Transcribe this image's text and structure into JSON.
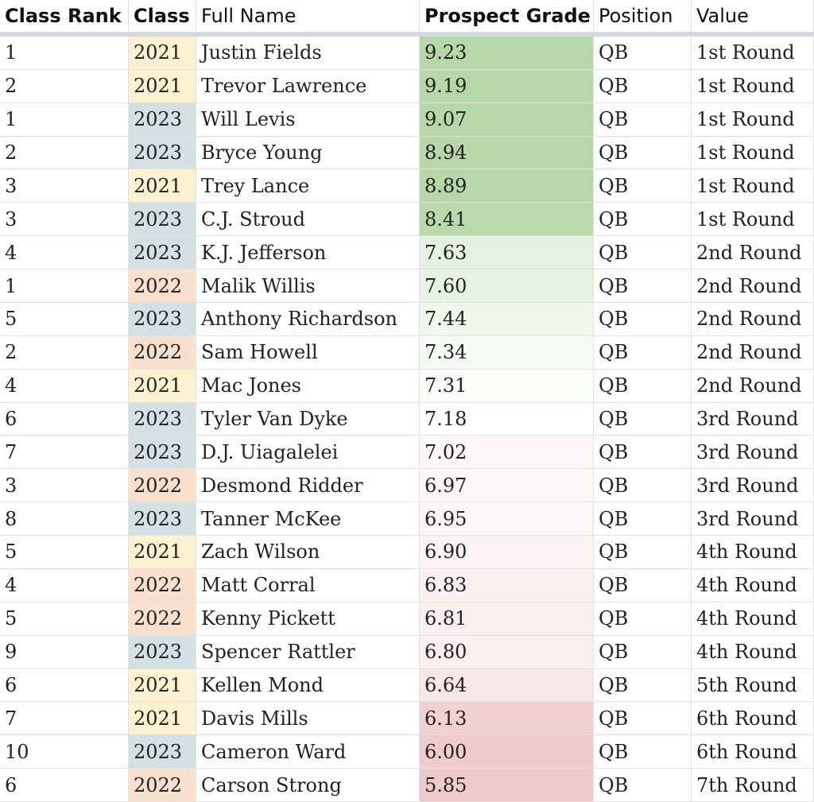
{
  "table": {
    "columns": [
      "Class Rank",
      "Class",
      "Full Name",
      "Prospect Grade",
      "Position",
      "Value"
    ],
    "class_colors": {
      "2021": "#fdf2cf",
      "2022": "#f8e0cd",
      "2023": "#d5e0e4"
    },
    "rows": [
      [
        1,
        2021,
        "Justin Fields",
        "9.23",
        "QB",
        "1st Round"
      ],
      [
        2,
        2021,
        "Trevor Lawrence",
        "9.19",
        "QB",
        "1st Round"
      ],
      [
        1,
        2023,
        "Will Levis",
        "9.07",
        "QB",
        "1st Round"
      ],
      [
        2,
        2023,
        "Bryce Young",
        "8.94",
        "QB",
        "1st Round"
      ],
      [
        3,
        2021,
        "Trey Lance",
        "8.89",
        "QB",
        "1st Round"
      ],
      [
        3,
        2023,
        "C.J. Stroud",
        "8.41",
        "QB",
        "1st Round"
      ],
      [
        4,
        2023,
        "K.J. Jefferson",
        "7.63",
        "QB",
        "2nd Round"
      ],
      [
        1,
        2022,
        "Malik Willis",
        "7.60",
        "QB",
        "2nd Round"
      ],
      [
        5,
        2023,
        "Anthony Richardson",
        "7.44",
        "QB",
        "2nd Round"
      ],
      [
        2,
        2022,
        "Sam Howell",
        "7.34",
        "QB",
        "2nd Round"
      ],
      [
        4,
        2021,
        "Mac Jones",
        "7.31",
        "QB",
        "2nd Round"
      ],
      [
        6,
        2023,
        "Tyler Van Dyke",
        "7.18",
        "QB",
        "3rd Round"
      ],
      [
        7,
        2023,
        "D.J. Uiagalelei",
        "7.02",
        "QB",
        "3rd Round"
      ],
      [
        3,
        2022,
        "Desmond Ridder",
        "6.97",
        "QB",
        "3rd Round"
      ],
      [
        8,
        2023,
        "Tanner McKee",
        "6.95",
        "QB",
        "3rd Round"
      ],
      [
        5,
        2021,
        "Zach Wilson",
        "6.90",
        "QB",
        "4th Round"
      ],
      [
        4,
        2022,
        "Matt Corral",
        "6.83",
        "QB",
        "4th Round"
      ],
      [
        5,
        2022,
        "Kenny Pickett",
        "6.81",
        "QB",
        "4th Round"
      ],
      [
        9,
        2023,
        "Spencer Rattler",
        "6.80",
        "QB",
        "4th Round"
      ],
      [
        6,
        2021,
        "Kellen Mond",
        "6.64",
        "QB",
        "5th Round"
      ],
      [
        7,
        2021,
        "Davis Mills",
        "6.13",
        "QB",
        "6th Round"
      ],
      [
        10,
        2023,
        "Cameron Ward",
        "6.00",
        "QB",
        "6th Round"
      ],
      [
        6,
        2022,
        "Carson Strong",
        "5.85",
        "QB",
        "7th Round"
      ]
    ]
  }
}
